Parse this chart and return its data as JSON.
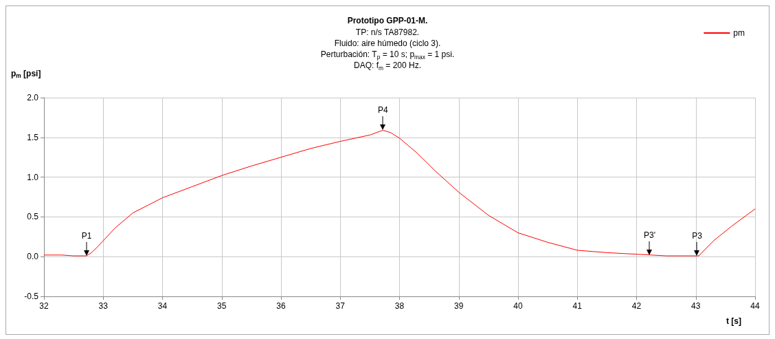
{
  "chart_data": {
    "type": "line",
    "title": "Prototipo GPP-01-M.",
    "subtitle": "TP: n/s TA87982.\nFluido: aire húmedo (ciclo 3).\nPerturbación: T$_{p}$ = 10 s; p$_{max}$ = 1 psi.\nDAQ: f$_{m}$ = 200 Hz.",
    "xlabel": "t [s]",
    "ylabel": "p$_{m}$ [psi]",
    "series": [
      {
        "name": "pm",
        "color": "#ff0000",
        "x": [
          32,
          32.3,
          32.5,
          32.72,
          32.8,
          32.9,
          33,
          33.2,
          33.5,
          34,
          34.5,
          35,
          35.5,
          36,
          36.5,
          37,
          37.5,
          37.72,
          37.85,
          38,
          38.3,
          38.6,
          39,
          39.5,
          40,
          40.5,
          41,
          41.5,
          42,
          42.5,
          43,
          43.05,
          43.3,
          43.6,
          44
        ],
        "values": [
          0.02,
          0.02,
          0.01,
          0.01,
          0.05,
          0.12,
          0.2,
          0.36,
          0.55,
          0.74,
          0.88,
          1.02,
          1.14,
          1.25,
          1.36,
          1.45,
          1.53,
          1.59,
          1.56,
          1.49,
          1.3,
          1.08,
          0.81,
          0.52,
          0.3,
          0.18,
          0.08,
          0.05,
          0.03,
          0.01,
          0.01,
          0.01,
          0.2,
          0.38,
          0.6
        ]
      }
    ],
    "xlim": [
      32,
      44
    ],
    "xticks": [
      32,
      33,
      34,
      35,
      36,
      37,
      38,
      39,
      40,
      41,
      42,
      43,
      44
    ],
    "ylim": [
      -0.5,
      2
    ],
    "yticks": [
      {
        "value": -0.5,
        "label": "-0.5"
      },
      {
        "value": 0,
        "label": "0.0"
      },
      {
        "value": 0.5,
        "label": "0.5"
      },
      {
        "value": 1,
        "label": "1.0"
      },
      {
        "value": 1.5,
        "label": "1.5"
      },
      {
        "value": 2,
        "label": "2.0"
      }
    ],
    "annotations": [
      {
        "text": "P1",
        "x": 32.72,
        "y": 0.01
      },
      {
        "text": "P4",
        "x": 37.72,
        "y": 1.59
      },
      {
        "text": "P3'",
        "x": 42.22,
        "y": 0.02
      },
      {
        "text": "P3",
        "x": 43.02,
        "y": 0.01
      }
    ],
    "grid": true,
    "legend": "top right",
    "marker": "none",
    "line_style": "solid"
  }
}
